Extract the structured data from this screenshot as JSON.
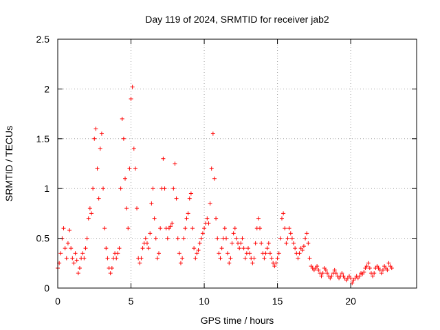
{
  "chart_data": {
    "type": "scatter",
    "title": "Day 119 of 2024, SRMTID for receiver jab2",
    "xlabel": "GPS time / hours",
    "ylabel": "SRMTID / TECUs",
    "xlim": [
      0,
      24.5
    ],
    "ylim": [
      0,
      2.5
    ],
    "xticks": [
      0,
      5,
      10,
      15,
      20
    ],
    "yticks": [
      0,
      0.5,
      1,
      1.5,
      2,
      2.5
    ],
    "xtick_labels": [
      "0",
      "5",
      "10",
      "15",
      "20"
    ],
    "ytick_labels": [
      "0",
      "0.5",
      "1",
      "1.5",
      "2",
      "2.5"
    ],
    "grid": true,
    "marker": "+",
    "color": "#ff0000",
    "series": [
      {
        "name": "SRMTID",
        "points": [
          [
            0.0,
            0.2
          ],
          [
            0.1,
            0.25
          ],
          [
            0.2,
            0.35
          ],
          [
            0.3,
            0.5
          ],
          [
            0.4,
            0.6
          ],
          [
            0.5,
            0.4
          ],
          [
            0.6,
            0.3
          ],
          [
            0.7,
            0.45
          ],
          [
            0.8,
            0.58
          ],
          [
            0.9,
            0.4
          ],
          [
            1.0,
            0.3
          ],
          [
            1.1,
            0.25
          ],
          [
            1.2,
            0.35
          ],
          [
            1.3,
            0.28
          ],
          [
            1.4,
            0.15
          ],
          [
            1.5,
            0.2
          ],
          [
            1.6,
            0.3
          ],
          [
            1.7,
            0.35
          ],
          [
            1.8,
            0.3
          ],
          [
            1.9,
            0.4
          ],
          [
            2.0,
            0.5
          ],
          [
            2.1,
            0.7
          ],
          [
            2.2,
            0.8
          ],
          [
            2.3,
            0.75
          ],
          [
            2.4,
            1.0
          ],
          [
            2.5,
            1.5
          ],
          [
            2.6,
            1.6
          ],
          [
            2.7,
            1.2
          ],
          [
            2.8,
            0.9
          ],
          [
            2.9,
            1.4
          ],
          [
            3.0,
            1.55
          ],
          [
            3.1,
            1.0
          ],
          [
            3.2,
            0.6
          ],
          [
            3.3,
            0.4
          ],
          [
            3.4,
            0.3
          ],
          [
            3.5,
            0.2
          ],
          [
            3.6,
            0.15
          ],
          [
            3.7,
            0.2
          ],
          [
            3.8,
            0.3
          ],
          [
            3.9,
            0.35
          ],
          [
            4.0,
            0.3
          ],
          [
            4.1,
            0.35
          ],
          [
            4.2,
            0.4
          ],
          [
            4.3,
            1.0
          ],
          [
            4.4,
            1.7
          ],
          [
            4.5,
            1.5
          ],
          [
            4.6,
            1.1
          ],
          [
            4.7,
            0.8
          ],
          [
            4.8,
            0.6
          ],
          [
            4.9,
            1.2
          ],
          [
            5.0,
            1.9
          ],
          [
            5.1,
            2.02
          ],
          [
            5.2,
            1.4
          ],
          [
            5.3,
            1.2
          ],
          [
            5.4,
            0.8
          ],
          [
            5.5,
            0.3
          ],
          [
            5.6,
            0.25
          ],
          [
            5.7,
            0.3
          ],
          [
            5.8,
            0.4
          ],
          [
            5.9,
            0.45
          ],
          [
            6.0,
            0.5
          ],
          [
            6.1,
            0.45
          ],
          [
            6.2,
            0.4
          ],
          [
            6.3,
            0.55
          ],
          [
            6.4,
            0.85
          ],
          [
            6.5,
            1.0
          ],
          [
            6.6,
            0.7
          ],
          [
            6.7,
            0.5
          ],
          [
            6.8,
            0.3
          ],
          [
            6.9,
            0.35
          ],
          [
            7.0,
            0.6
          ],
          [
            7.1,
            1.0
          ],
          [
            7.2,
            1.3
          ],
          [
            7.3,
            1.0
          ],
          [
            7.4,
            0.6
          ],
          [
            7.5,
            0.5
          ],
          [
            7.6,
            0.6
          ],
          [
            7.7,
            0.62
          ],
          [
            7.8,
            0.65
          ],
          [
            7.9,
            1.0
          ],
          [
            8.0,
            1.25
          ],
          [
            8.1,
            0.9
          ],
          [
            8.2,
            0.5
          ],
          [
            8.3,
            0.35
          ],
          [
            8.4,
            0.25
          ],
          [
            8.5,
            0.3
          ],
          [
            8.6,
            0.5
          ],
          [
            8.7,
            0.6
          ],
          [
            8.8,
            0.7
          ],
          [
            8.9,
            0.75
          ],
          [
            9.0,
            0.9
          ],
          [
            9.1,
            0.95
          ],
          [
            9.2,
            0.6
          ],
          [
            9.3,
            0.4
          ],
          [
            9.4,
            0.3
          ],
          [
            9.5,
            0.35
          ],
          [
            9.6,
            0.38
          ],
          [
            9.7,
            0.45
          ],
          [
            9.8,
            0.5
          ],
          [
            9.9,
            0.55
          ],
          [
            10.0,
            0.6
          ],
          [
            10.1,
            0.65
          ],
          [
            10.2,
            0.7
          ],
          [
            10.3,
            0.65
          ],
          [
            10.4,
            0.85
          ],
          [
            10.5,
            1.2
          ],
          [
            10.6,
            1.55
          ],
          [
            10.7,
            1.1
          ],
          [
            10.8,
            0.7
          ],
          [
            10.9,
            0.5
          ],
          [
            11.0,
            0.35
          ],
          [
            11.1,
            0.3
          ],
          [
            11.2,
            0.4
          ],
          [
            11.3,
            0.5
          ],
          [
            11.4,
            0.6
          ],
          [
            11.5,
            0.5
          ],
          [
            11.6,
            0.35
          ],
          [
            11.7,
            0.25
          ],
          [
            11.8,
            0.3
          ],
          [
            11.9,
            0.45
          ],
          [
            12.0,
            0.55
          ],
          [
            12.1,
            0.6
          ],
          [
            12.2,
            0.5
          ],
          [
            12.3,
            0.45
          ],
          [
            12.4,
            0.4
          ],
          [
            12.5,
            0.45
          ],
          [
            12.6,
            0.5
          ],
          [
            12.7,
            0.4
          ],
          [
            12.8,
            0.3
          ],
          [
            12.9,
            0.35
          ],
          [
            13.0,
            0.4
          ],
          [
            13.1,
            0.35
          ],
          [
            13.2,
            0.3
          ],
          [
            13.3,
            0.25
          ],
          [
            13.4,
            0.3
          ],
          [
            13.5,
            0.45
          ],
          [
            13.6,
            0.6
          ],
          [
            13.7,
            0.7
          ],
          [
            13.8,
            0.6
          ],
          [
            13.9,
            0.45
          ],
          [
            14.0,
            0.35
          ],
          [
            14.1,
            0.3
          ],
          [
            14.2,
            0.35
          ],
          [
            14.3,
            0.4
          ],
          [
            14.4,
            0.45
          ],
          [
            14.5,
            0.35
          ],
          [
            14.6,
            0.3
          ],
          [
            14.7,
            0.25
          ],
          [
            14.8,
            0.22
          ],
          [
            14.9,
            0.25
          ],
          [
            15.0,
            0.3
          ],
          [
            15.1,
            0.35
          ],
          [
            15.2,
            0.5
          ],
          [
            15.3,
            0.7
          ],
          [
            15.4,
            0.75
          ],
          [
            15.5,
            0.6
          ],
          [
            15.6,
            0.45
          ],
          [
            15.7,
            0.5
          ],
          [
            15.8,
            0.6
          ],
          [
            15.9,
            0.55
          ],
          [
            16.0,
            0.5
          ],
          [
            16.1,
            0.45
          ],
          [
            16.2,
            0.4
          ],
          [
            16.3,
            0.35
          ],
          [
            16.4,
            0.3
          ],
          [
            16.5,
            0.35
          ],
          [
            16.6,
            0.4
          ],
          [
            16.7,
            0.38
          ],
          [
            16.8,
            0.42
          ],
          [
            16.9,
            0.5
          ],
          [
            17.0,
            0.55
          ],
          [
            17.1,
            0.45
          ],
          [
            17.2,
            0.3
          ],
          [
            17.3,
            0.22
          ],
          [
            17.4,
            0.2
          ],
          [
            17.5,
            0.18
          ],
          [
            17.6,
            0.2
          ],
          [
            17.7,
            0.22
          ],
          [
            17.8,
            0.18
          ],
          [
            17.9,
            0.15
          ],
          [
            18.0,
            0.12
          ],
          [
            18.1,
            0.15
          ],
          [
            18.2,
            0.2
          ],
          [
            18.3,
            0.18
          ],
          [
            18.4,
            0.15
          ],
          [
            18.5,
            0.12
          ],
          [
            18.6,
            0.1
          ],
          [
            18.7,
            0.12
          ],
          [
            18.8,
            0.15
          ],
          [
            18.9,
            0.18
          ],
          [
            19.0,
            0.15
          ],
          [
            19.1,
            0.12
          ],
          [
            19.2,
            0.1
          ],
          [
            19.3,
            0.12
          ],
          [
            19.4,
            0.15
          ],
          [
            19.5,
            0.12
          ],
          [
            19.6,
            0.1
          ],
          [
            19.7,
            0.08
          ],
          [
            19.8,
            0.1
          ],
          [
            19.9,
            0.12
          ],
          [
            20.0,
            0.1
          ],
          [
            20.1,
            0.05
          ],
          [
            20.2,
            0.08
          ],
          [
            20.3,
            0.1
          ],
          [
            20.4,
            0.12
          ],
          [
            20.5,
            0.1
          ],
          [
            20.6,
            0.12
          ],
          [
            20.7,
            0.15
          ],
          [
            20.8,
            0.14
          ],
          [
            20.9,
            0.16
          ],
          [
            21.0,
            0.2
          ],
          [
            21.1,
            0.22
          ],
          [
            21.2,
            0.25
          ],
          [
            21.3,
            0.2
          ],
          [
            21.4,
            0.15
          ],
          [
            21.5,
            0.12
          ],
          [
            21.6,
            0.15
          ],
          [
            21.7,
            0.2
          ],
          [
            21.8,
            0.22
          ],
          [
            21.9,
            0.2
          ],
          [
            22.0,
            0.18
          ],
          [
            22.1,
            0.15
          ],
          [
            22.2,
            0.18
          ],
          [
            22.3,
            0.22
          ],
          [
            22.4,
            0.2
          ],
          [
            22.5,
            0.18
          ],
          [
            22.6,
            0.25
          ],
          [
            22.7,
            0.22
          ],
          [
            22.8,
            0.2
          ]
        ]
      }
    ]
  }
}
